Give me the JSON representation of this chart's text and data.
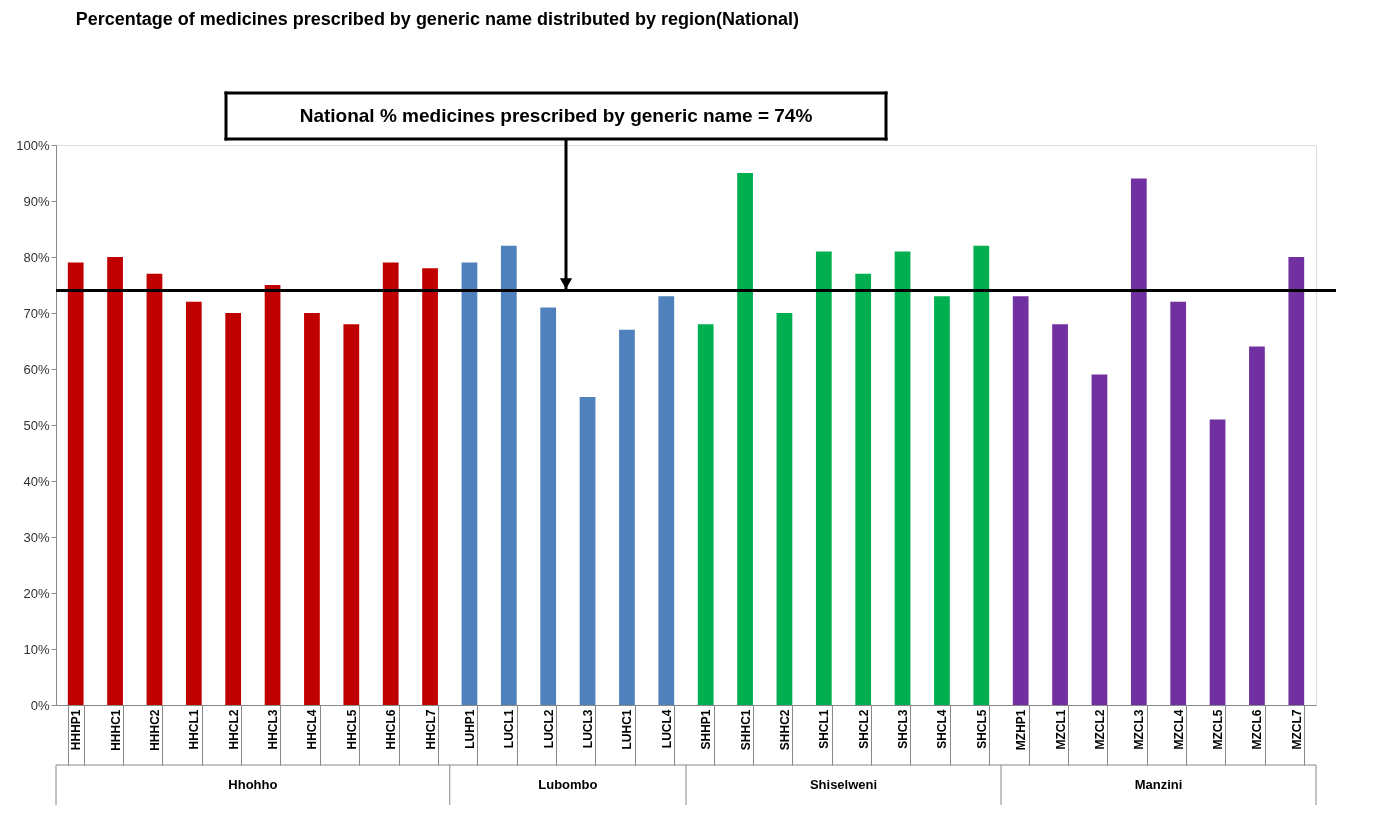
{
  "chart_data": {
    "type": "bar",
    "title": "Percentage of medicines prescribed by generic name distributed by region(National)",
    "categories": [
      "HHHP1",
      "HHHC1",
      "HHHC2",
      "HHCL1",
      "HHCL2",
      "HHCL3",
      "HHCL4",
      "HHCL5",
      "HHCL6",
      "HHCL7",
      "LUHP1",
      "LUCL1",
      "LUCL2",
      "LUCL3",
      "LUHC1",
      "LUCL4",
      "SHHP1",
      "SHHC1",
      "SHHC2",
      "SHCL1",
      "SHCL2",
      "SHCL3",
      "SHCL4",
      "SHCL5",
      "MZHP1",
      "MZCL1",
      "MZCL2",
      "MZCL3",
      "MZCL4",
      "MZCL5",
      "MZCL6",
      "MZCL7"
    ],
    "series": [
      {
        "name": "Hhohho",
        "color": "#c00000",
        "values": [
          79,
          80,
          77,
          72,
          70,
          75,
          70,
          68,
          79,
          78,
          null,
          null,
          null,
          null,
          null,
          null,
          null,
          null,
          null,
          null,
          null,
          null,
          null,
          null,
          null,
          null,
          null,
          null,
          null,
          null,
          null,
          null
        ]
      },
      {
        "name": "Lubombo",
        "color": "#4f81bd",
        "values": [
          null,
          null,
          null,
          null,
          null,
          null,
          null,
          null,
          null,
          null,
          79,
          82,
          71,
          55,
          67,
          73,
          null,
          null,
          null,
          null,
          null,
          null,
          null,
          null,
          null,
          null,
          null,
          null,
          null,
          null,
          null,
          null
        ]
      },
      {
        "name": "Shiselweni",
        "color": "#00b050",
        "values": [
          null,
          null,
          null,
          null,
          null,
          null,
          null,
          null,
          null,
          null,
          null,
          null,
          null,
          null,
          null,
          null,
          68,
          95,
          70,
          81,
          77,
          81,
          73,
          82,
          null,
          null,
          null,
          null,
          null,
          null,
          null,
          null
        ]
      },
      {
        "name": "Manzini",
        "color": "#7030a0",
        "values": [
          null,
          null,
          null,
          null,
          null,
          null,
          null,
          null,
          null,
          null,
          null,
          null,
          null,
          null,
          null,
          null,
          null,
          null,
          null,
          null,
          null,
          null,
          null,
          null,
          73,
          68,
          59,
          94,
          72,
          51,
          64,
          80
        ]
      }
    ],
    "ylim": [
      0,
      100
    ],
    "yticks": [
      {
        "value": 0,
        "label": "0%"
      },
      {
        "value": 10,
        "label": "10%"
      },
      {
        "value": 20,
        "label": "20%"
      },
      {
        "value": 30,
        "label": "30%"
      },
      {
        "value": 40,
        "label": "40%"
      },
      {
        "value": 50,
        "label": "50%"
      },
      {
        "value": 60,
        "label": "60%"
      },
      {
        "value": 70,
        "label": "70%"
      },
      {
        "value": 80,
        "label": "80%"
      },
      {
        "value": 90,
        "label": "90%"
      },
      {
        "value": 100,
        "label": "100%"
      }
    ],
    "ref_lines": [
      {
        "axis": "y",
        "value": 74,
        "label": "National % medicines prescribed by generic name = 74%",
        "color": "#000000"
      }
    ],
    "grid": false,
    "legend": false
  }
}
